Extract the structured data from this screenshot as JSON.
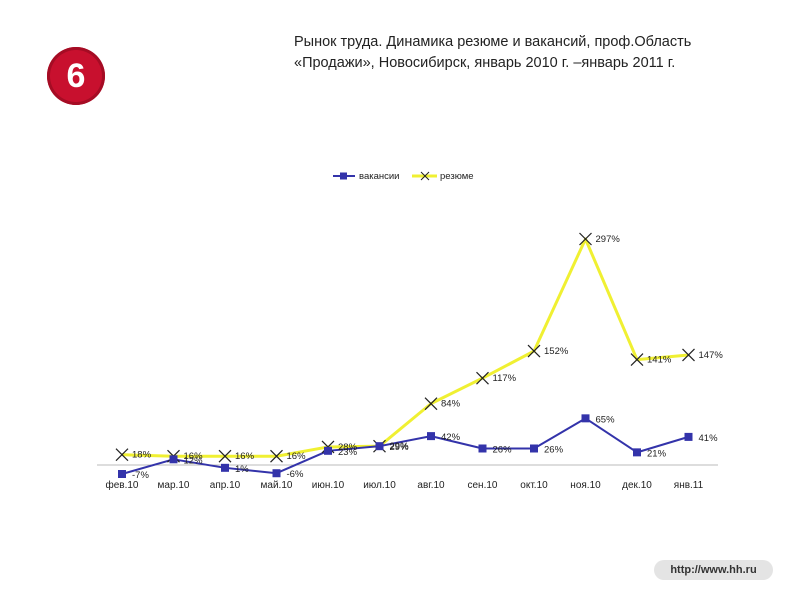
{
  "slide": {
    "number": "6",
    "title": "Рынок труда. Динамика резюме и вакансий, проф.Область «Продажи», Новосибирск, январь 2010 г. –январь 2011 г.",
    "footer_url": "http://www.hh.ru"
  },
  "chart_data": {
    "type": "line",
    "title": "",
    "xlabel": "",
    "ylabel": "",
    "categories": [
      "фев.10",
      "мар.10",
      "апр.10",
      "май.10",
      "июн.10",
      "июл.10",
      "авг.10",
      "сен.10",
      "окт.10",
      "ноя.10",
      "дек.10",
      "янв.11"
    ],
    "ylim": [
      -7,
      297
    ],
    "grid": false,
    "legend_position": "top",
    "series": [
      {
        "name": "вакансии",
        "color": "#3333aa",
        "marker": "square",
        "values": [
          -7,
          12,
          1,
          -6,
          23,
          29,
          42,
          26,
          26,
          65,
          21,
          41
        ],
        "labels": [
          "-7%",
          "12%",
          "1%",
          "-6%",
          "23%",
          "29%",
          "42%",
          "26%",
          "26%",
          "65%",
          "21%",
          "41%"
        ]
      },
      {
        "name": "резюме",
        "color": "#f0f032",
        "marker": "x",
        "values": [
          18,
          16,
          16,
          16,
          28,
          29,
          84,
          117,
          152,
          297,
          141,
          147
        ],
        "labels": [
          "18%",
          "16%",
          "16%",
          "16%",
          "28%",
          "29%",
          "84%",
          "117%",
          "152%",
          "297%",
          "141%",
          "147%"
        ]
      }
    ]
  }
}
